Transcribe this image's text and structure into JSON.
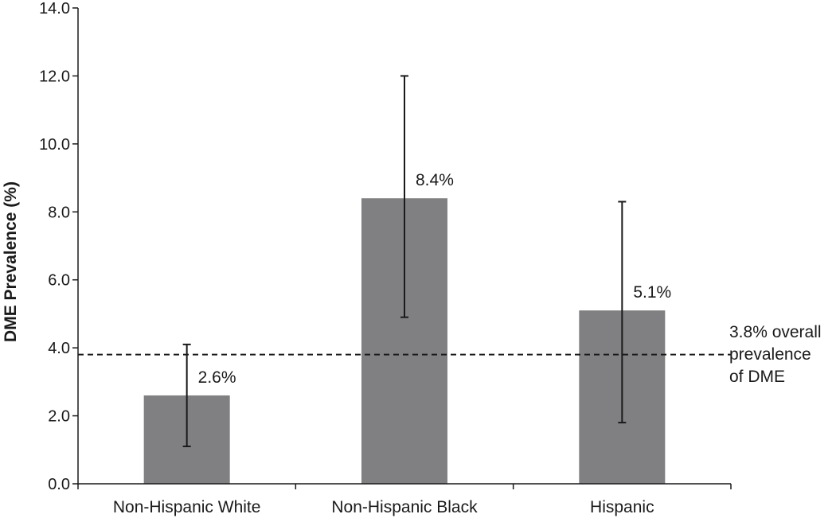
{
  "chart_data": {
    "type": "bar",
    "ylabel": "DME Prevalence (%)",
    "xlabel": "",
    "ylim": [
      0,
      14
    ],
    "yticks": [
      "0.0",
      "2.0",
      "4.0",
      "6.0",
      "8.0",
      "10.0",
      "12.0",
      "14.0"
    ],
    "categories": [
      "Non-Hispanic White",
      "Non-Hispanic Black",
      "Hispanic"
    ],
    "values": [
      2.6,
      8.4,
      5.1
    ],
    "data_labels": [
      "2.6%",
      "8.4%",
      "5.1%"
    ],
    "error_low": [
      1.1,
      4.9,
      1.8
    ],
    "error_high": [
      4.1,
      12.0,
      8.3
    ],
    "reference_line": {
      "value": 3.8,
      "style": "dashed",
      "label_lines": [
        "3.8% overall",
        "prevalence",
        "of DME"
      ]
    },
    "bar_color": "#808082",
    "grid": false,
    "legend": "none"
  }
}
